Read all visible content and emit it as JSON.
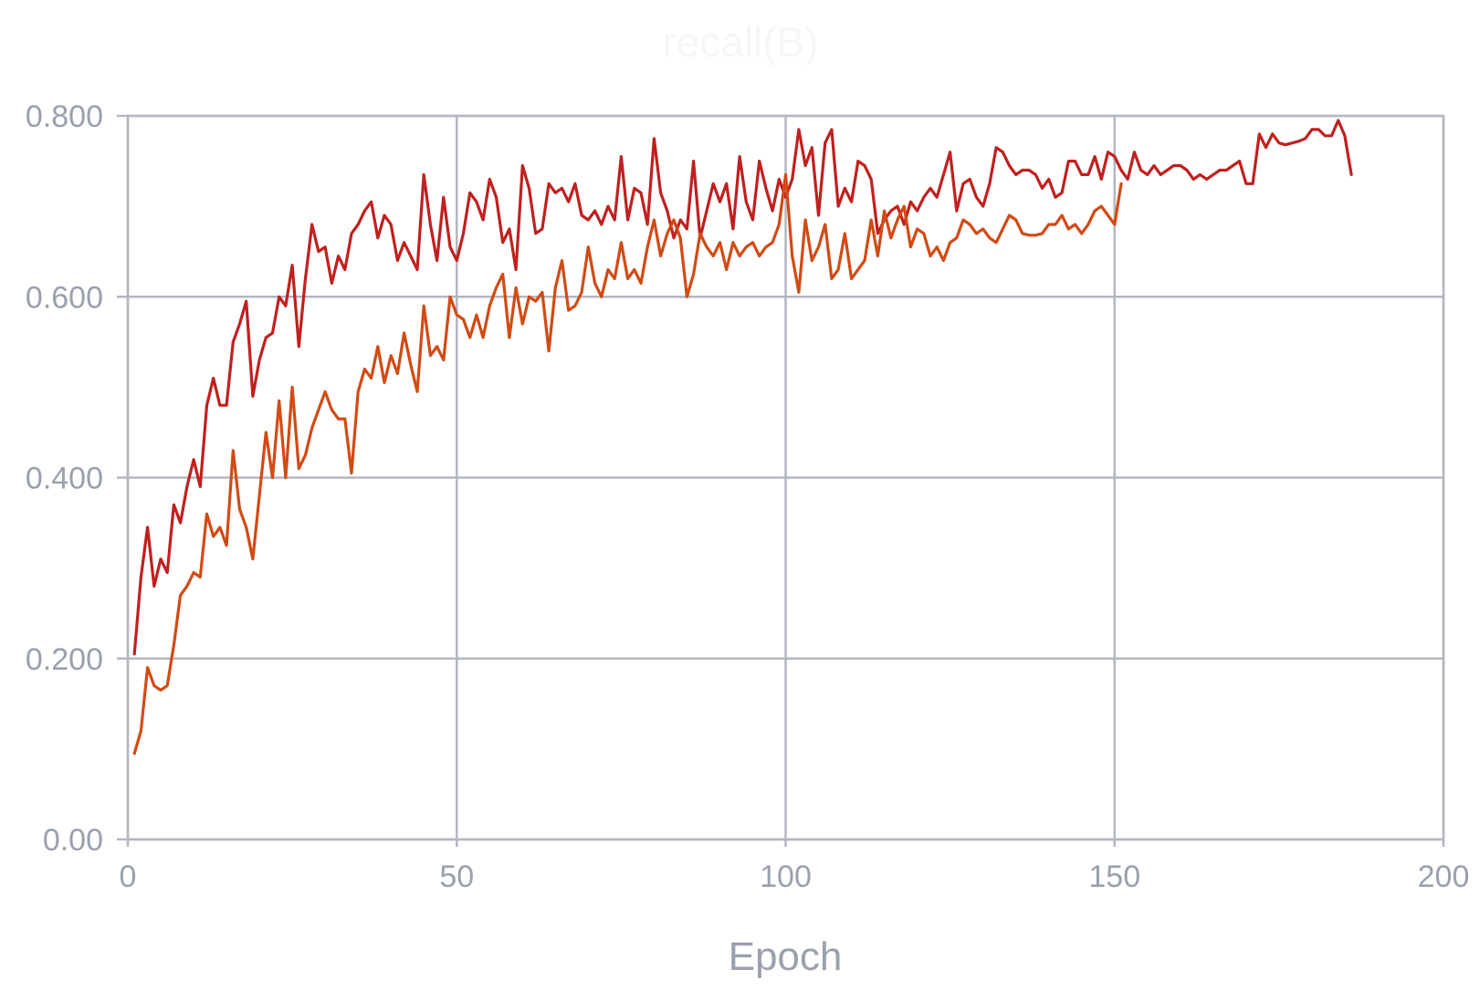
{
  "chart_data": {
    "type": "line",
    "title": "recall(B)",
    "xlabel": "Epoch",
    "ylabel": "",
    "xlim": [
      0,
      200
    ],
    "ylim": [
      0,
      0.8
    ],
    "xticks": [
      0,
      50,
      100,
      150,
      200
    ],
    "xtick_labels": [
      "0",
      "50",
      "100",
      "150",
      "200"
    ],
    "yticks": [
      0,
      0.2,
      0.4,
      0.6,
      0.8
    ],
    "ytick_labels": [
      "0.00",
      "0.200",
      "0.400",
      "0.600",
      "0.800"
    ],
    "grid": true,
    "series": [
      {
        "color": "#c0201f",
        "x_start": 1,
        "values": [
          0.205,
          0.29,
          0.345,
          0.28,
          0.31,
          0.295,
          0.37,
          0.35,
          0.39,
          0.42,
          0.39,
          0.48,
          0.51,
          0.48,
          0.48,
          0.55,
          0.57,
          0.595,
          0.49,
          0.53,
          0.555,
          0.56,
          0.6,
          0.59,
          0.635,
          0.545,
          0.62,
          0.68,
          0.65,
          0.655,
          0.615,
          0.645,
          0.63,
          0.67,
          0.68,
          0.695,
          0.705,
          0.665,
          0.69,
          0.68,
          0.64,
          0.66,
          0.645,
          0.63,
          0.735,
          0.68,
          0.64,
          0.71,
          0.655,
          0.64,
          0.67,
          0.715,
          0.705,
          0.685,
          0.73,
          0.71,
          0.66,
          0.675,
          0.63,
          0.745,
          0.72,
          0.67,
          0.675,
          0.725,
          0.715,
          0.72,
          0.705,
          0.725,
          0.69,
          0.685,
          0.695,
          0.68,
          0.7,
          0.685,
          0.755,
          0.685,
          0.72,
          0.715,
          0.68,
          0.775,
          0.715,
          0.695,
          0.665,
          0.685,
          0.675,
          0.75,
          0.665,
          0.695,
          0.725,
          0.705,
          0.725,
          0.675,
          0.755,
          0.705,
          0.685,
          0.75,
          0.72,
          0.695,
          0.73,
          0.71,
          0.73,
          0.785,
          0.745,
          0.765,
          0.69,
          0.77,
          0.785,
          0.7,
          0.72,
          0.705,
          0.75,
          0.745,
          0.73,
          0.67,
          0.685,
          0.695,
          0.7,
          0.68,
          0.705,
          0.695,
          0.71,
          0.72,
          0.71,
          0.735,
          0.76,
          0.695,
          0.725,
          0.73,
          0.71,
          0.7,
          0.725,
          0.765,
          0.76,
          0.745,
          0.735,
          0.74,
          0.74,
          0.735,
          0.72,
          0.73,
          0.71,
          0.715,
          0.75,
          0.75,
          0.735,
          0.735,
          0.755,
          0.73,
          0.76,
          0.755,
          0.74,
          0.73,
          0.76,
          0.74,
          0.735,
          0.745,
          0.735,
          0.74,
          0.745,
          0.745,
          0.74,
          0.73,
          0.735,
          0.73,
          0.735,
          0.74,
          0.74,
          0.745,
          0.75,
          0.725,
          0.725,
          0.78,
          0.765,
          0.78,
          0.77,
          0.768,
          0.77,
          0.772,
          0.775,
          0.785,
          0.785,
          0.778,
          0.778,
          0.795,
          0.778,
          0.735
        ]
      },
      {
        "color": "#d24a14",
        "x_start": 1,
        "values": [
          0.095,
          0.12,
          0.19,
          0.17,
          0.165,
          0.17,
          0.215,
          0.27,
          0.28,
          0.295,
          0.29,
          0.36,
          0.335,
          0.345,
          0.325,
          0.43,
          0.365,
          0.345,
          0.31,
          0.38,
          0.45,
          0.4,
          0.485,
          0.4,
          0.5,
          0.41,
          0.425,
          0.455,
          0.475,
          0.495,
          0.475,
          0.465,
          0.465,
          0.405,
          0.495,
          0.52,
          0.51,
          0.545,
          0.505,
          0.535,
          0.515,
          0.56,
          0.525,
          0.495,
          0.59,
          0.535,
          0.545,
          0.53,
          0.6,
          0.58,
          0.575,
          0.555,
          0.58,
          0.555,
          0.59,
          0.61,
          0.625,
          0.555,
          0.61,
          0.57,
          0.6,
          0.595,
          0.605,
          0.54,
          0.61,
          0.64,
          0.585,
          0.59,
          0.605,
          0.655,
          0.615,
          0.6,
          0.63,
          0.62,
          0.66,
          0.62,
          0.63,
          0.615,
          0.655,
          0.685,
          0.645,
          0.67,
          0.685,
          0.665,
          0.6,
          0.625,
          0.67,
          0.655,
          0.645,
          0.66,
          0.63,
          0.66,
          0.645,
          0.655,
          0.66,
          0.645,
          0.655,
          0.66,
          0.68,
          0.735,
          0.645,
          0.605,
          0.685,
          0.64,
          0.655,
          0.68,
          0.62,
          0.63,
          0.67,
          0.62,
          0.63,
          0.64,
          0.685,
          0.645,
          0.695,
          0.665,
          0.685,
          0.7,
          0.655,
          0.675,
          0.67,
          0.645,
          0.655,
          0.64,
          0.66,
          0.665,
          0.685,
          0.68,
          0.67,
          0.675,
          0.665,
          0.66,
          0.675,
          0.69,
          0.685,
          0.67,
          0.668,
          0.668,
          0.67,
          0.68,
          0.68,
          0.69,
          0.675,
          0.68,
          0.67,
          0.68,
          0.695,
          0.7,
          0.69,
          0.68,
          0.725
        ]
      }
    ]
  }
}
